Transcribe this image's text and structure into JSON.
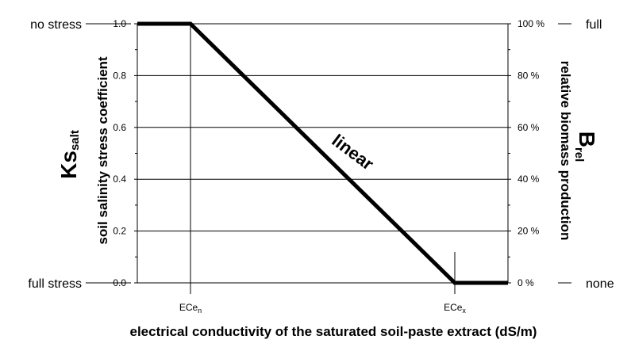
{
  "chart_data": {
    "type": "line",
    "x_categories_positions": [
      "ECe_n",
      "ECe_x"
    ],
    "x_ticks": [
      {
        "base": "ECe",
        "sub": "n"
      },
      {
        "base": "ECe",
        "sub": "x"
      }
    ],
    "series": [
      {
        "x": [
          "0",
          "ECe_n",
          "ECe_x",
          "max"
        ],
        "values": [
          1.0,
          1.0,
          0.0,
          0.0
        ]
      }
    ],
    "ylim": [
      0,
      1
    ],
    "y_ticks": [
      "0.0",
      "0.2",
      "0.4",
      "0.6",
      "0.8",
      "1.0"
    ],
    "y2_ticks": [
      "0 %",
      "20 %",
      "40 %",
      "60 %",
      "80 %",
      "100 %"
    ],
    "grid": true,
    "xlabel": "electrical conductivity of the saturated soil-paste extract (dS/m)",
    "ylabel": {
      "symbol": "Ks",
      "subscript": "salt",
      "text": "soil salinity stress coefficient"
    },
    "y2label": {
      "symbol": "B",
      "subscript": "rel",
      "text": "relative biomass production"
    },
    "left_labels": {
      "top": "no stress",
      "bottom": "full stress"
    },
    "right_labels": {
      "top": "full",
      "bottom": "none"
    },
    "annotation": "linear"
  }
}
